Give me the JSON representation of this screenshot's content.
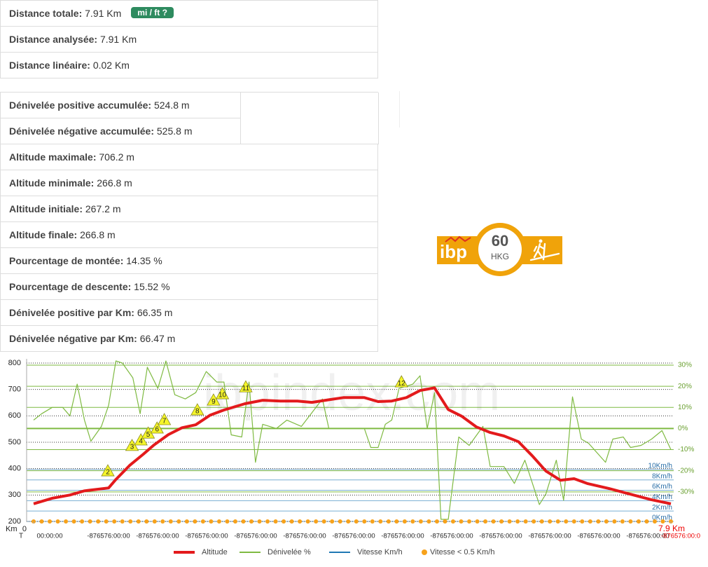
{
  "tables": [
    {
      "rows": [
        {
          "label": "Distance totale:",
          "value": "7.91 Km",
          "button": "mi / ft ?"
        },
        {
          "label": "Distance analysée:",
          "value": "7.91 Km"
        },
        {
          "label": "Distance linéaire:",
          "value": "0.02 Km"
        }
      ]
    },
    {
      "rows": [
        {
          "label": "Dénivelée positive accumulée:",
          "value": "524.8 m"
        },
        {
          "label": "Dénivelée négative accumulée:",
          "value": "525.8 m"
        },
        {
          "label": "Altitude maximale:",
          "value": "706.2 m"
        },
        {
          "label": "Altitude minimale:",
          "value": "266.8 m"
        },
        {
          "label": "Altitude initiale:",
          "value": "267.2 m"
        },
        {
          "label": "Altitude finale:",
          "value": "266.8 m"
        },
        {
          "label": "Pourcentage de montée:",
          "value": "14.35 %"
        },
        {
          "label": "Pourcentage de descente:",
          "value": "15.52 %"
        },
        {
          "label": "Dénivelée positive par Km:",
          "value": "66.35 m"
        },
        {
          "label": "Dénivelée négative par Km:",
          "value": "66.47 m"
        }
      ]
    }
  ],
  "badge": {
    "brand": "ibp",
    "score": 60,
    "code": "HKG"
  },
  "chart_data": {
    "type": "line",
    "watermark": "ibpindex.com",
    "xlabel": "Km",
    "xlim": [
      0,
      7.9
    ],
    "xticks": [
      0,
      {
        "value": 7.9,
        "label": "7.9 Km"
      }
    ],
    "ylim": [
      200,
      800
    ],
    "yticks": [
      200,
      300,
      400,
      500,
      600,
      700,
      800
    ],
    "y2lim": [
      -44,
      31
    ],
    "y2ticks": [
      {
        "value": 30,
        "label": "30%"
      },
      {
        "value": 20,
        "label": "20%"
      },
      {
        "value": 10,
        "label": "10%"
      },
      {
        "value": 0,
        "label": "0%"
      },
      {
        "value": -10,
        "label": "-10%"
      },
      {
        "value": -20,
        "label": "-20%"
      },
      {
        "value": -30,
        "label": "-30%"
      }
    ],
    "y3lim": [
      0,
      30.5
    ],
    "y3ticks": [
      {
        "value": 10,
        "label": "10Km/h"
      },
      {
        "value": 8,
        "label": "8Km/h"
      },
      {
        "value": 6,
        "label": "6Km/h"
      },
      {
        "value": 4,
        "label": "4Km/h"
      },
      {
        "value": 2,
        "label": "2Km/h"
      },
      {
        "value": 0,
        "label": "0Km/h"
      }
    ],
    "grid": true,
    "time_label": "T",
    "time_labels": [
      "00:00:00",
      "-876576:00:00",
      "-876576:00:00",
      "-876576:00:00",
      "-876576:00:00",
      "-876576:00:00",
      "-876576:00:00",
      "-876576:00:00",
      "-876576:00:00",
      "-876576:00:00",
      "-876576:00:00",
      "-876576:00:00",
      "-876576:00:00",
      "-876576:00:0"
    ],
    "waypoints": [
      {
        "label": "2",
        "x": 0.92,
        "y": 391
      },
      {
        "label": "3",
        "x": 1.22,
        "y": 487
      },
      {
        "label": "4",
        "x": 1.33,
        "y": 508
      },
      {
        "label": "5",
        "x": 1.42,
        "y": 534
      },
      {
        "label": "6",
        "x": 1.53,
        "y": 553
      },
      {
        "label": "7",
        "x": 1.62,
        "y": 585
      },
      {
        "label": "8",
        "x": 2.03,
        "y": 622
      },
      {
        "label": "9",
        "x": 2.23,
        "y": 659
      },
      {
        "label": "10",
        "x": 2.34,
        "y": 683
      },
      {
        "label": "11",
        "x": 2.63,
        "y": 709
      },
      {
        "label": "12",
        "x": 4.56,
        "y": 728
      }
    ],
    "series": [
      {
        "name": "Altitude",
        "color": "#e31a1c",
        "x": [
          0,
          0.23,
          0.45,
          0.63,
          0.8,
          0.93,
          1.02,
          1.19,
          1.36,
          1.49,
          1.67,
          1.84,
          2.01,
          2.19,
          2.36,
          2.62,
          2.84,
          3.06,
          3.27,
          3.45,
          3.66,
          3.84,
          4.1,
          4.27,
          4.44,
          4.62,
          4.79,
          4.97,
          5.14,
          5.31,
          5.49,
          5.66,
          5.83,
          6.01,
          6.18,
          6.35,
          6.53,
          6.7,
          6.87,
          7.13,
          7.4,
          7.66,
          7.9
        ],
        "values": [
          267,
          288,
          300,
          316,
          322,
          327,
          359,
          412,
          455,
          489,
          529,
          555,
          566,
          603,
          622,
          646,
          659,
          656,
          656,
          651,
          661,
          669,
          669,
          654,
          656,
          669,
          696,
          706,
          624,
          598,
          558,
          537,
          524,
          502,
          449,
          391,
          356,
          362,
          343,
          325,
          303,
          282,
          267
        ]
      },
      {
        "name": "Dénivelée %",
        "color": "#7fba42",
        "axis": "y2",
        "x": [
          0,
          0.1,
          0.23,
          0.36,
          0.45,
          0.54,
          0.63,
          0.71,
          0.84,
          0.93,
          1.02,
          1.1,
          1.23,
          1.32,
          1.41,
          1.54,
          1.64,
          1.75,
          1.88,
          2.01,
          2.14,
          2.27,
          2.36,
          2.45,
          2.58,
          2.67,
          2.75,
          2.84,
          3.01,
          3.14,
          3.32,
          3.58,
          3.66,
          4.1,
          4.18,
          4.27,
          4.36,
          4.44,
          4.53,
          4.7,
          4.79,
          4.88,
          4.97,
          5.05,
          5.14,
          5.27,
          5.4,
          5.57,
          5.66,
          5.83,
          5.96,
          6.09,
          6.27,
          6.35,
          6.48,
          6.57,
          6.68,
          6.79,
          6.88,
          7.09,
          7.18,
          7.31,
          7.4,
          7.53,
          7.66,
          7.79,
          7.9
        ],
        "values": [
          4,
          7,
          10,
          10,
          6,
          21,
          4,
          -6,
          1,
          11,
          32,
          31,
          24,
          7,
          29,
          19,
          32,
          16,
          14,
          17,
          27,
          22,
          22,
          -3,
          -4,
          22,
          -16,
          2,
          0,
          4,
          1,
          14,
          0,
          0,
          -9,
          -9,
          2,
          4,
          19,
          21,
          25,
          0,
          17,
          -43,
          -43,
          -4,
          -8,
          1,
          -18,
          -18,
          -26,
          -15,
          -36,
          -31,
          -15,
          -34,
          15,
          -5,
          -7,
          -16,
          -5,
          -4,
          -9,
          -8,
          -5,
          -1,
          -10
        ]
      },
      {
        "name": "Vitesse Km/h",
        "color": "#1f78b4",
        "axis": "y3"
      },
      {
        "name": "Vitesse < 0.5 Km/h",
        "color": "#f7a21b",
        "axis": "y3",
        "marker": "dot",
        "x": [
          0,
          0.1,
          0.2,
          0.3,
          0.4,
          0.5,
          0.6,
          0.7,
          0.8,
          0.9,
          1,
          1.1,
          1.2,
          1.3,
          1.4,
          1.5,
          1.6,
          1.7,
          1.8,
          1.9,
          2,
          2.1,
          2.2,
          2.3,
          2.4,
          2.5,
          2.6,
          2.7,
          2.8,
          2.9,
          3,
          3.1,
          3.2,
          3.3,
          3.4,
          3.5,
          3.6,
          3.7,
          3.8,
          3.9,
          4,
          4.1,
          4.2,
          4.3,
          4.4,
          4.5,
          4.6,
          4.7,
          4.8,
          4.9,
          5,
          5.1,
          5.2,
          5.3,
          5.4,
          5.5,
          5.6,
          5.7,
          5.8,
          5.9,
          6,
          6.1,
          6.2,
          6.3,
          6.4,
          6.5,
          6.6,
          6.7,
          6.8,
          6.9,
          7,
          7.1,
          7.2,
          7.3,
          7.4,
          7.5,
          7.6,
          7.7,
          7.8,
          7.9
        ],
        "values": [
          0,
          0,
          0,
          0,
          0,
          0,
          0,
          0,
          0,
          0,
          0,
          0,
          0,
          0,
          0,
          0,
          0,
          0,
          0,
          0,
          0,
          0,
          0,
          0,
          0,
          0,
          0,
          0,
          0,
          0,
          0,
          0,
          0,
          0,
          0,
          0,
          0,
          0,
          0,
          0,
          0,
          0,
          0,
          0,
          0,
          0,
          0,
          0,
          0,
          0,
          0,
          0,
          0,
          0,
          0,
          0,
          0,
          0,
          0,
          0,
          0,
          0,
          0,
          0,
          0,
          0,
          0,
          0,
          0,
          0,
          0,
          0,
          0,
          0,
          0,
          0,
          0,
          0,
          0,
          0
        ]
      }
    ]
  }
}
